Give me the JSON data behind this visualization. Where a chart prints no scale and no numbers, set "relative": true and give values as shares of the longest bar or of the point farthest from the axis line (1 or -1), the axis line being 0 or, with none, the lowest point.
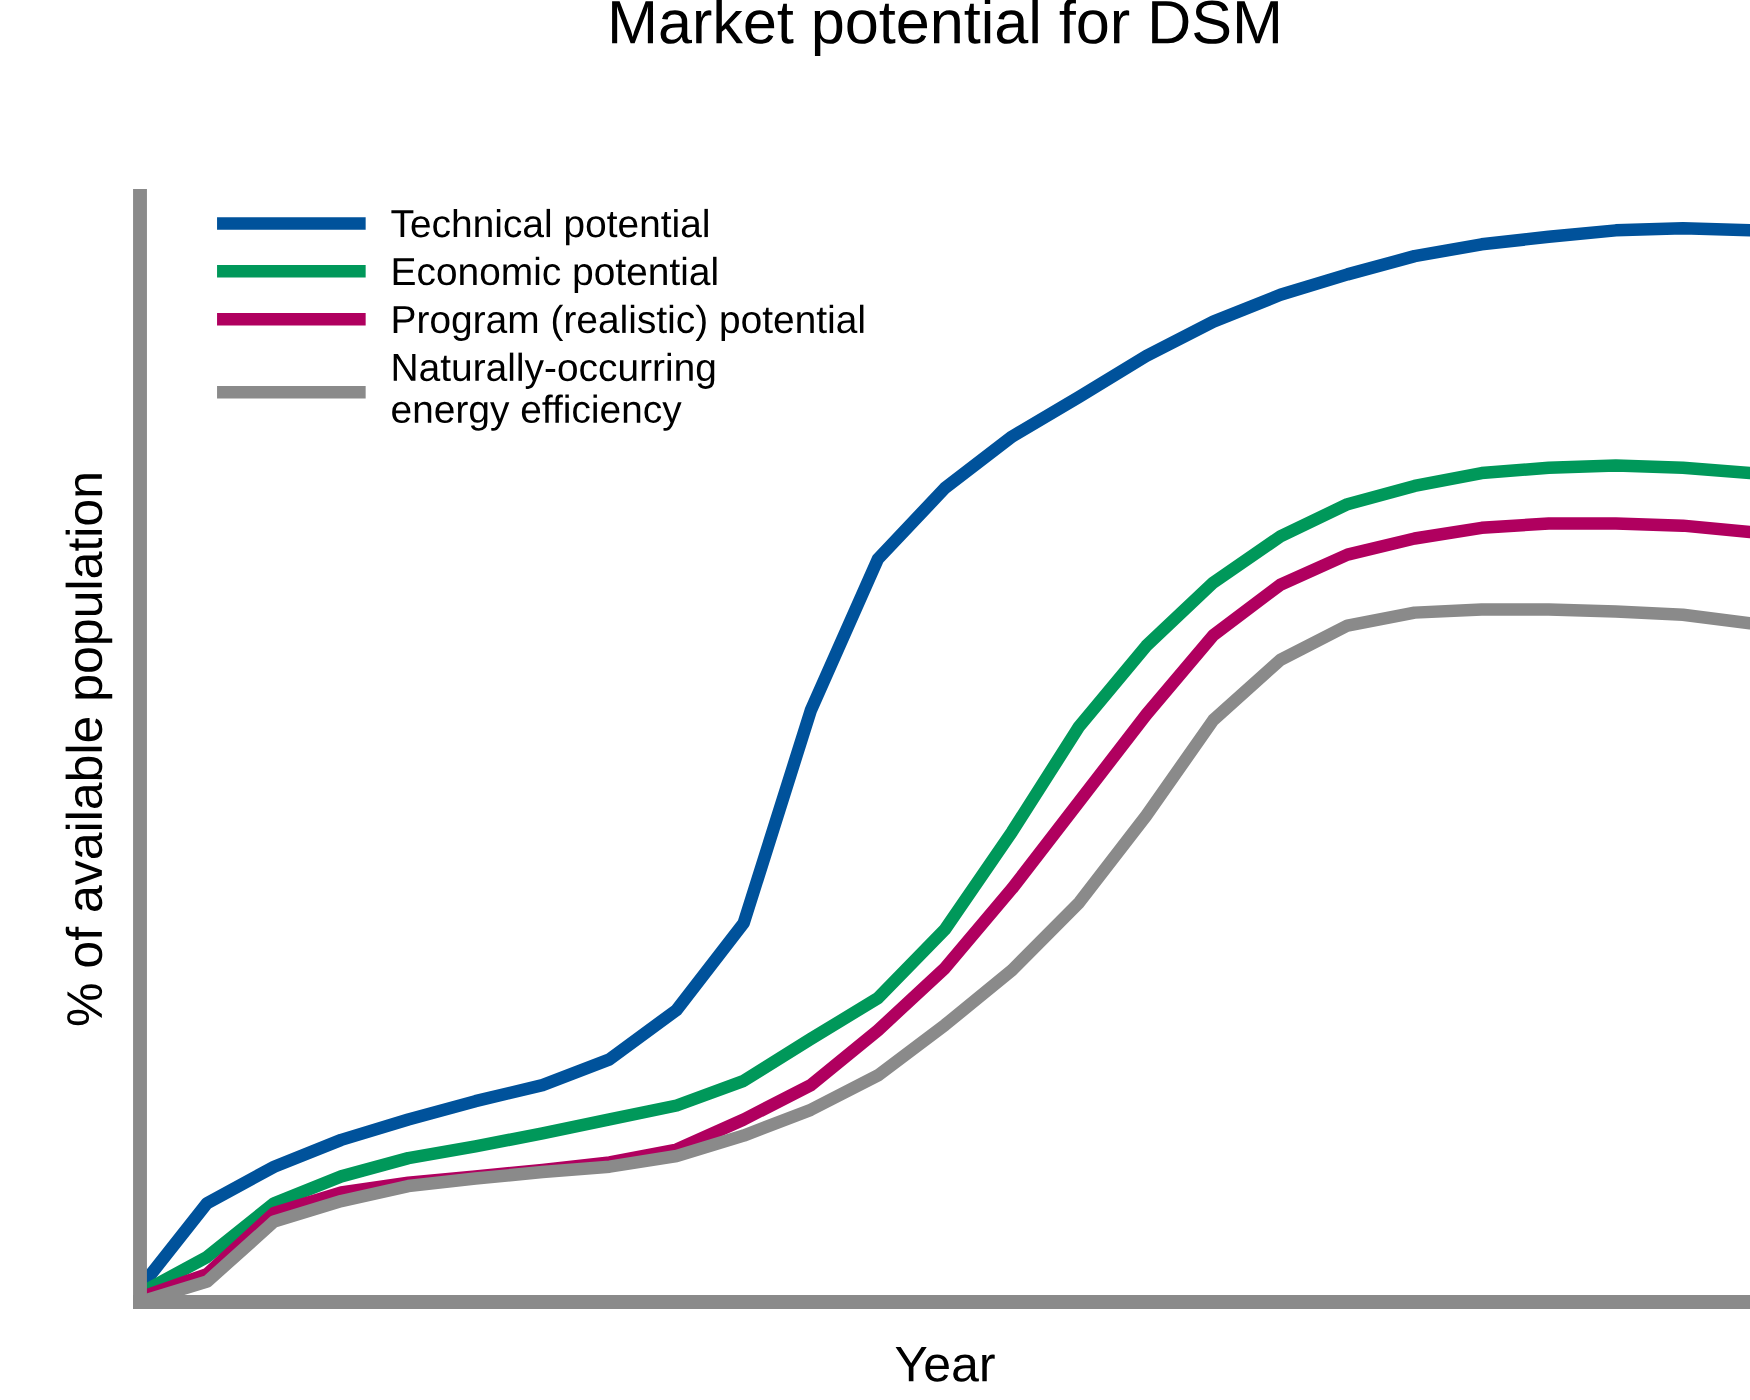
{
  "chart_data": {
    "type": "line",
    "title": "Market potential for DSM",
    "xlabel": "Year",
    "ylabel": "% of available population",
    "relative": true,
    "legend": "top left",
    "grid": false,
    "marker": "none",
    "line_style": "solid",
    "categories": [
      null,
      null,
      null,
      null,
      null,
      null,
      null,
      null,
      null,
      null,
      null,
      null,
      null,
      null,
      null,
      null,
      null,
      null,
      null,
      null,
      null,
      null,
      null,
      null,
      null
    ],
    "series": [
      {
        "name": "Technical potential",
        "color": "#00529b",
        "values": [
          0.013,
          0.092,
          0.126,
          0.151,
          0.17,
          0.187,
          0.202,
          0.226,
          0.272,
          0.353,
          0.551,
          0.692,
          0.758,
          0.806,
          0.843,
          0.881,
          0.913,
          0.938,
          0.957,
          0.974,
          0.985,
          0.992,
          0.998,
          1,
          0.998
        ]
      },
      {
        "name": "Economic potential",
        "color": "#00985a",
        "values": [
          0.008,
          0.042,
          0.092,
          0.117,
          0.134,
          0.145,
          0.157,
          0.17,
          0.183,
          0.206,
          0.245,
          0.283,
          0.347,
          0.438,
          0.536,
          0.611,
          0.67,
          0.713,
          0.743,
          0.76,
          0.772,
          0.777,
          0.779,
          0.777,
          0.772
        ]
      },
      {
        "name": "Program (realistic) potential",
        "color": "#b0005f",
        "values": [
          0.004,
          0.026,
          0.083,
          0.102,
          0.111,
          0.117,
          0.123,
          0.13,
          0.142,
          0.17,
          0.202,
          0.253,
          0.311,
          0.385,
          0.466,
          0.547,
          0.621,
          0.668,
          0.696,
          0.711,
          0.721,
          0.725,
          0.725,
          0.723,
          0.717
        ]
      },
      {
        "name": "Naturally-occurring\nenergy efficiency",
        "color": "#8a8a8a",
        "values": [
          0,
          0.019,
          0.075,
          0.094,
          0.108,
          0.115,
          0.121,
          0.126,
          0.136,
          0.155,
          0.179,
          0.211,
          0.258,
          0.309,
          0.372,
          0.453,
          0.542,
          0.598,
          0.63,
          0.642,
          0.645,
          0.645,
          0.643,
          0.64,
          0.632
        ]
      }
    ]
  }
}
